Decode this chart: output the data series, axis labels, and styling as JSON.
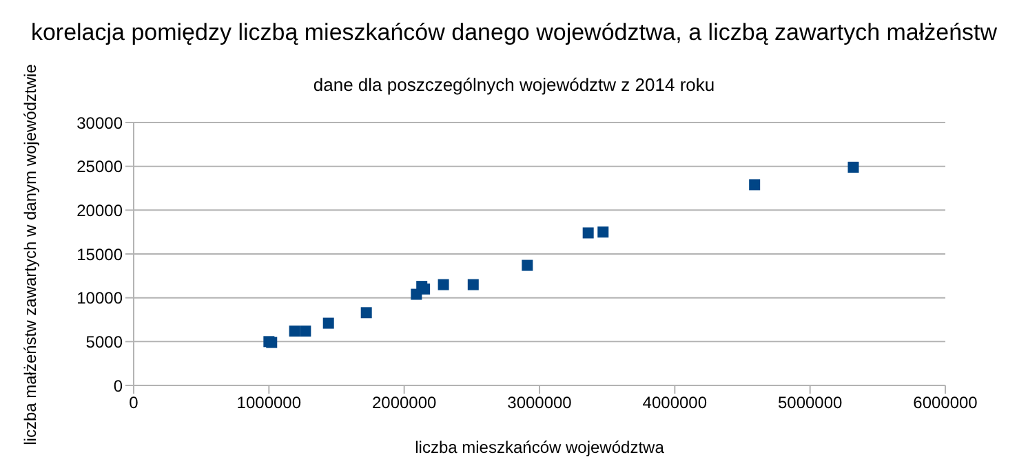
{
  "chart_data": {
    "type": "scatter",
    "title": "korelacja pomiędzy liczbą mieszkańców danego województwa, a liczbą zawartych małżeństw",
    "subtitle": "dane dla poszczególnych województw z 2014 roku",
    "xlabel": "liczba mieszkańców województwa",
    "ylabel": "liczba małżeństw zawartych w danym województwie",
    "x": [
      1000000,
      1020000,
      1190000,
      1270000,
      1440000,
      1720000,
      2090000,
      2130000,
      2150000,
      2290000,
      2510000,
      2910000,
      3360000,
      3470000,
      4590000,
      5320000
    ],
    "series": [
      {
        "color": "#004586",
        "values": [
          5000,
          4900,
          6200,
          6200,
          7100,
          8300,
          10400,
          11300,
          11000,
          11500,
          11500,
          13700,
          17400,
          17500,
          22900,
          24900
        ]
      }
    ],
    "xlim": [
      0,
      6000000
    ],
    "xticks": [
      0,
      1000000,
      2000000,
      3000000,
      4000000,
      5000000,
      6000000
    ],
    "ylim": [
      0,
      30000
    ],
    "yticks": [
      0,
      5000,
      10000,
      15000,
      20000,
      25000,
      30000
    ],
    "grid": "y",
    "marker": "square"
  }
}
